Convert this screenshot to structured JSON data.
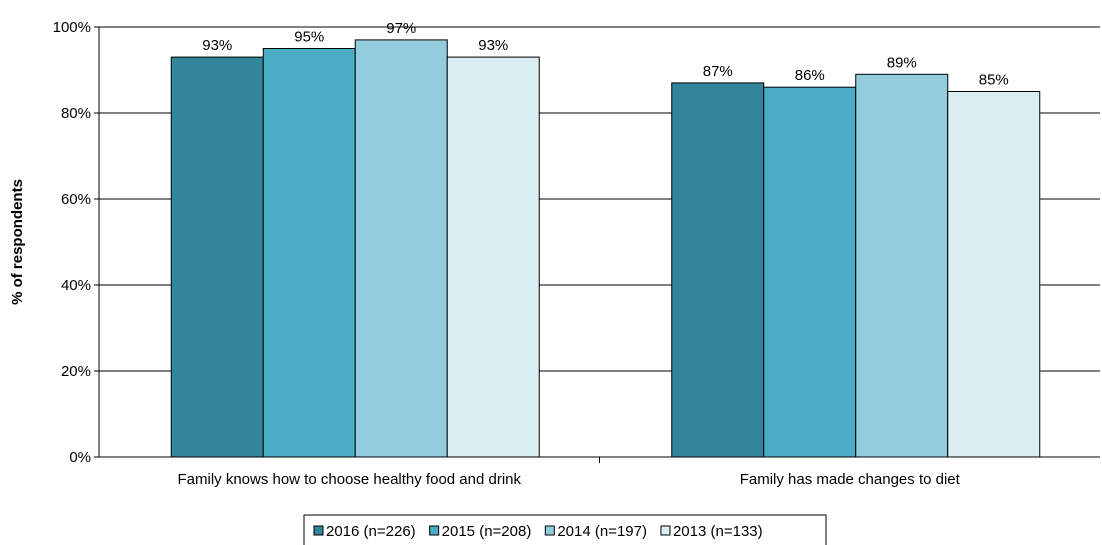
{
  "chart_data": {
    "type": "bar",
    "title": "",
    "xlabel": "",
    "ylabel": "% of respondents",
    "ylim": [
      0,
      100
    ],
    "yticks": [
      0,
      20,
      40,
      60,
      80,
      100
    ],
    "ytick_suffix": "%",
    "grid": "horizontal",
    "legend_position": "bottom",
    "categories": [
      "Family knows how to choose healthy food and drink",
      "Family has made changes to diet"
    ],
    "series": [
      {
        "name": "2016 (n=226)",
        "color": "#31869B",
        "values": [
          93,
          87
        ]
      },
      {
        "name": "2015 (n=208)",
        "color": "#4BACC6",
        "values": [
          95,
          86
        ]
      },
      {
        "name": "2014 (n=197)",
        "color": "#93CDDD",
        "values": [
          97,
          89
        ]
      },
      {
        "name": "2013 (n=133)",
        "color": "#DAEEF3",
        "values": [
          93,
          85
        ]
      }
    ]
  }
}
